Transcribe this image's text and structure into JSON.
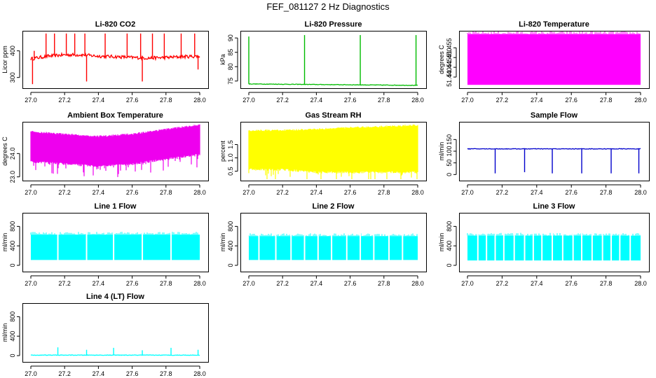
{
  "page_title": "FEF_081127  2 Hz Diagnostics",
  "chart_data": [
    {
      "type": "line",
      "title": "Li-820 CO2",
      "xlabel": "",
      "ylabel": "Licor ppm",
      "color": "#ff0000",
      "xlim": [
        27.0,
        28.0
      ],
      "ylim": [
        265,
        470
      ],
      "xticks": [
        "27.0",
        "27.2",
        "27.4",
        "27.6",
        "27.8",
        "28.0"
      ],
      "yticks": [
        {
          "v": 300,
          "t": "300"
        },
        {
          "v": 400,
          "t": "400"
        }
      ],
      "series": [
        {
          "x": [
            27.0,
            27.1,
            27.2,
            27.3,
            27.4,
            27.5,
            27.6,
            27.7,
            27.8,
            27.9,
            28.0
          ],
          "y": [
            370,
            380,
            385,
            385,
            380,
            378,
            375,
            373,
            375,
            378,
            380
          ],
          "spikes_up": [
            [
              27.02,
              400
            ],
            [
              27.09,
              465
            ],
            [
              27.14,
              465
            ],
            [
              27.21,
              465
            ],
            [
              27.26,
              465
            ],
            [
              27.32,
              465
            ],
            [
              27.44,
              465
            ],
            [
              27.57,
              465
            ],
            [
              27.65,
              465
            ],
            [
              27.72,
              465
            ],
            [
              27.79,
              465
            ],
            [
              27.89,
              465
            ],
            [
              27.97,
              465
            ]
          ],
          "spikes_down": [
            [
              27.01,
              275
            ],
            [
              27.33,
              285
            ],
            [
              27.66,
              285
            ],
            [
              27.99,
              330
            ]
          ]
        }
      ]
    },
    {
      "type": "line",
      "title": "Li-820 Pressure",
      "xlabel": "",
      "ylabel": "kPa",
      "color": "#00bb00",
      "xlim": [
        27.0,
        28.0
      ],
      "ylim": [
        73,
        92
      ],
      "xticks": [
        "27.0",
        "27.2",
        "27.4",
        "27.6",
        "27.8",
        "28.0"
      ],
      "yticks": [
        {
          "v": 75,
          "t": "75"
        },
        {
          "v": 80,
          "t": "80"
        },
        {
          "v": 85,
          "t": "85"
        },
        {
          "v": 90,
          "t": "90"
        }
      ],
      "series": [
        {
          "x": [
            27.0,
            27.2,
            27.4,
            27.6,
            27.8,
            28.0
          ],
          "y": [
            74.0,
            73.9,
            73.8,
            73.7,
            73.6,
            73.5
          ],
          "spikes_up": [
            [
              27.0,
              90.5
            ],
            [
              27.33,
              91
            ],
            [
              27.66,
              91
            ],
            [
              27.99,
              91
            ]
          ],
          "spikes_down": []
        }
      ]
    },
    {
      "type": "area",
      "title": "Li-820 Temperature",
      "xlabel": "",
      "ylabel": "degrees C",
      "color": "#ff00ff",
      "xlim": [
        27.0,
        28.0
      ],
      "ylim": [
        51.435,
        51.463
      ],
      "xticks": [
        "27.0",
        "27.2",
        "27.4",
        "27.6",
        "27.8",
        "28.0"
      ],
      "yticks": [
        {
          "v": 51.44,
          "t": "51.440"
        },
        {
          "v": 51.445,
          "t": "51.445"
        },
        {
          "v": 51.45,
          "t": "51.450"
        },
        {
          "v": 51.455,
          "t": "51.455"
        }
      ],
      "series": [
        {
          "band_low": 51.436,
          "band_high": 51.462
        }
      ]
    },
    {
      "type": "area",
      "title": "Ambient Box Temperature",
      "xlabel": "",
      "ylabel": "degrees C",
      "color": "#ee00ee",
      "xlim": [
        27.0,
        28.0
      ],
      "ylim": [
        22.9,
        25.3
      ],
      "xticks": [
        "27.0",
        "27.2",
        "27.4",
        "27.6",
        "27.8",
        "28.0"
      ],
      "yticks": [
        {
          "v": 23.0,
          "t": "23.0"
        },
        {
          "v": 24.0,
          "t": "24.0"
        }
      ],
      "series": [
        {
          "x": [
            27.0,
            27.2,
            27.4,
            27.6,
            27.8,
            28.0
          ],
          "low": [
            23.7,
            23.6,
            23.5,
            23.6,
            23.8,
            24.0
          ],
          "high": [
            24.9,
            24.8,
            24.7,
            24.8,
            25.0,
            25.2
          ]
        }
      ]
    },
    {
      "type": "area",
      "title": "Gas Stream RH",
      "xlabel": "",
      "ylabel": "percent",
      "color": "#ffff00",
      "xlim": [
        27.0,
        28.0
      ],
      "ylim": [
        0.2,
        2.3
      ],
      "xticks": [
        "27.0",
        "27.2",
        "27.4",
        "27.6",
        "27.8",
        "28.0"
      ],
      "yticks": [
        {
          "v": 0.5,
          "t": "0.5"
        },
        {
          "v": 1.0,
          "t": "1.0"
        },
        {
          "v": 1.5,
          "t": "1.5"
        }
      ],
      "series": [
        {
          "x": [
            27.0,
            27.2,
            27.4,
            27.6,
            27.8,
            28.0
          ],
          "low": [
            0.6,
            0.6,
            0.5,
            0.5,
            0.5,
            0.5
          ],
          "high": [
            2.0,
            2.0,
            2.05,
            2.1,
            2.15,
            2.2
          ]
        }
      ]
    },
    {
      "type": "line",
      "title": "Sample Flow",
      "xlabel": "",
      "ylabel": "ml/min",
      "color": "#0000cc",
      "xlim": [
        27.0,
        28.0
      ],
      "ylim": [
        -20,
        220
      ],
      "xticks": [
        "27.0",
        "27.2",
        "27.4",
        "27.6",
        "27.8",
        "28.0"
      ],
      "yticks": [
        {
          "v": 0,
          "t": "0"
        },
        {
          "v": 50,
          "t": "50"
        },
        {
          "v": 100,
          "t": "100"
        },
        {
          "v": 150,
          "t": "150"
        }
      ],
      "series": [
        {
          "x": [
            27.0,
            28.0
          ],
          "y": [
            110,
            110
          ],
          "spikes_up": [],
          "spikes_down": [
            [
              27.16,
              5
            ],
            [
              27.33,
              10
            ],
            [
              27.49,
              5
            ],
            [
              27.66,
              5
            ],
            [
              27.83,
              5
            ],
            [
              27.99,
              5
            ]
          ]
        }
      ]
    },
    {
      "type": "area",
      "title": "Line 1 Flow",
      "xlabel": "",
      "ylabel": "ml/min",
      "color": "#00ffff",
      "xlim": [
        27.0,
        28.0
      ],
      "ylim": [
        -100,
        1050
      ],
      "xticks": [
        "27.0",
        "27.2",
        "27.4",
        "27.6",
        "27.8",
        "28.0"
      ],
      "yticks": [
        {
          "v": 0,
          "t": "0"
        },
        {
          "v": 400,
          "t": "400"
        },
        {
          "v": 800,
          "t": "800"
        }
      ],
      "series": [
        {
          "band_low": 110,
          "band_high": 630,
          "gaps": [
            27.16,
            27.33,
            27.49,
            27.66,
            27.83
          ]
        }
      ]
    },
    {
      "type": "area",
      "title": "Line 2 Flow",
      "xlabel": "",
      "ylabel": "ml/min",
      "color": "#00ffff",
      "xlim": [
        27.0,
        28.0
      ],
      "ylim": [
        -100,
        1050
      ],
      "xticks": [
        "27.0",
        "27.2",
        "27.4",
        "27.6",
        "27.8",
        "28.0"
      ],
      "yticks": [
        {
          "v": 0,
          "t": "0"
        },
        {
          "v": 400,
          "t": "400"
        },
        {
          "v": 800,
          "t": "800"
        }
      ],
      "series": [
        {
          "band_low": 110,
          "band_high": 600,
          "gaps": [
            27.06,
            27.16,
            27.25,
            27.33,
            27.41,
            27.49,
            27.58,
            27.66,
            27.74,
            27.83,
            27.91
          ]
        }
      ]
    },
    {
      "type": "area",
      "title": "Line 3 Flow",
      "xlabel": "",
      "ylabel": "ml/min",
      "color": "#00ffff",
      "xlim": [
        27.0,
        28.0
      ],
      "ylim": [
        -100,
        1050
      ],
      "xticks": [
        "27.0",
        "27.2",
        "27.4",
        "27.6",
        "27.8",
        "28.0"
      ],
      "yticks": [
        {
          "v": 0,
          "t": "0"
        },
        {
          "v": 400,
          "t": "400"
        },
        {
          "v": 800,
          "t": "800"
        }
      ],
      "series": [
        {
          "band_low": 100,
          "band_high": 610,
          "gaps": [
            27.06,
            27.11,
            27.16,
            27.21,
            27.27,
            27.33,
            27.38,
            27.43,
            27.49,
            27.55,
            27.61,
            27.66,
            27.72,
            27.78,
            27.83,
            27.88,
            27.94
          ]
        }
      ]
    },
    {
      "type": "line",
      "title": "Line 4 (LT) Flow",
      "xlabel": "",
      "ylabel": "ml/min",
      "color": "#00ffff",
      "xlim": [
        27.0,
        28.0
      ],
      "ylim": [
        -100,
        1050
      ],
      "xticks": [
        "27.0",
        "27.2",
        "27.4",
        "27.6",
        "27.8",
        "28.0"
      ],
      "yticks": [
        {
          "v": 0,
          "t": "0"
        },
        {
          "v": 400,
          "t": "400"
        },
        {
          "v": 800,
          "t": "800"
        }
      ],
      "series": [
        {
          "x": [
            27.0,
            28.0
          ],
          "y": [
            10,
            10
          ],
          "spikes_up": [
            [
              27.16,
              170
            ],
            [
              27.33,
              120
            ],
            [
              27.49,
              160
            ],
            [
              27.66,
              110
            ],
            [
              27.83,
              160
            ],
            [
              27.99,
              120
            ]
          ],
          "spikes_down": []
        }
      ]
    }
  ]
}
